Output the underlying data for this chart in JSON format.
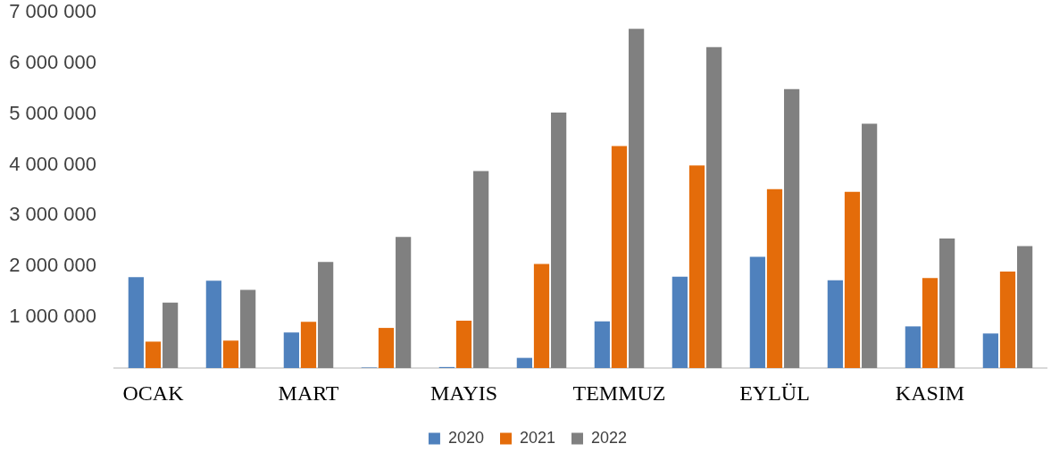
{
  "chart_data": {
    "type": "bar",
    "categories": [
      "OCAK",
      null,
      "MART",
      null,
      "MAYIS",
      null,
      "TEMMUZ",
      null,
      "EYLÜL",
      null,
      "KASIM",
      null
    ],
    "series": [
      {
        "name": "2020",
        "color": "#4f81bd",
        "values": [
          1790000,
          1720000,
          700000,
          10000,
          20000,
          200000,
          920000,
          1800000,
          2190000,
          1730000,
          820000,
          680000
        ]
      },
      {
        "name": "2021",
        "color": "#e46c0a",
        "values": [
          520000,
          540000,
          910000,
          790000,
          930000,
          2050000,
          4370000,
          3990000,
          3520000,
          3470000,
          1770000,
          1900000
        ]
      },
      {
        "name": "2022",
        "color": "#808080",
        "values": [
          1290000,
          1540000,
          2090000,
          2580000,
          3880000,
          5030000,
          6680000,
          6320000,
          5490000,
          4810000,
          2550000,
          2400000
        ]
      }
    ],
    "ylim": [
      0,
      7000000
    ],
    "yticks": [
      {
        "value": 1000000,
        "label": "1 000 000"
      },
      {
        "value": 2000000,
        "label": "2 000 000"
      },
      {
        "value": 3000000,
        "label": "3 000 000"
      },
      {
        "value": 4000000,
        "label": "4 000 000"
      },
      {
        "value": 5000000,
        "label": "5 000 000"
      },
      {
        "value": 6000000,
        "label": "6 000 000"
      },
      {
        "value": 7000000,
        "label": "7 000 000"
      }
    ],
    "legend": "bottom"
  }
}
